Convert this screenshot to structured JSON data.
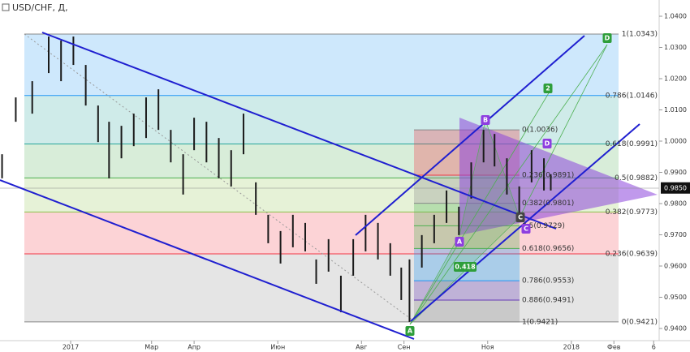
{
  "header": {
    "title": "USD/CHF, Д,"
  },
  "chart_data": {
    "type": "hilo",
    "color": "#1a1a1a",
    "x": [
      -50,
      -40,
      -28,
      -16,
      -7,
      2,
      11,
      20,
      28,
      37,
      46,
      55,
      64,
      73,
      82,
      90,
      99,
      108,
      117,
      126,
      135,
      144,
      153,
      162,
      171,
      179,
      188,
      197,
      206,
      215,
      224,
      233,
      241,
      247,
      256,
      265,
      274,
      283,
      292,
      301,
      309,
      318,
      327,
      336,
      345,
      350
    ],
    "high": [
      0.9958,
      1.014,
      1.0192,
      1.0335,
      1.0322,
      1.0335,
      1.0244,
      1.0114,
      1.0062,
      1.0049,
      1.0088,
      1.014,
      1.0166,
      1.0036,
      0.9958,
      1.0075,
      1.0062,
      1.001,
      0.9971,
      1.0088,
      0.9868,
      0.9764,
      0.9712,
      0.9764,
      0.9738,
      0.9621,
      0.9686,
      0.9569,
      0.9686,
      0.9764,
      0.9738,
      0.9673,
      0.9595,
      0.9621,
      0.9699,
      0.9764,
      0.9842,
      0.979,
      0.9932,
      1.0036,
      1.0023,
      0.9945,
      0.9855,
      0.9971,
      0.9945,
      0.9894
    ],
    "low": [
      0.9881,
      1.0062,
      1.0088,
      1.0218,
      1.0192,
      1.0244,
      1.0114,
      0.9997,
      0.9881,
      0.9945,
      0.9984,
      1.001,
      1.0036,
      0.9932,
      0.9829,
      0.9971,
      0.9932,
      0.9881,
      0.9855,
      0.9958,
      0.9764,
      0.9673,
      0.9608,
      0.966,
      0.9647,
      0.9543,
      0.9582,
      0.9452,
      0.9569,
      0.9647,
      0.9621,
      0.9569,
      0.9491,
      0.9421,
      0.9595,
      0.9673,
      0.9738,
      0.9699,
      0.9816,
      0.9932,
      0.9919,
      0.9829,
      0.9751,
      0.9868,
      0.9842,
      0.9842
    ],
    "xlim": [
      -51.5,
      429
    ],
    "ylim": [
      0.9361,
      1.0452
    ],
    "xticks": [
      {
        "value": 0,
        "label": "2017"
      },
      {
        "value": 59,
        "label": "Мар"
      },
      {
        "value": 90,
        "label": "Апр"
      },
      {
        "value": 151,
        "label": "Июн"
      },
      {
        "value": 212,
        "label": "Авг"
      },
      {
        "value": 243,
        "label": "Сен"
      },
      {
        "value": 304,
        "label": "Ноя"
      },
      {
        "value": 365,
        "label": "2018"
      },
      {
        "value": 396,
        "label": "Фев"
      },
      {
        "value": 425,
        "label": "6"
      }
    ],
    "yticks": [
      {
        "value": 1.04,
        "label": "1.0400"
      },
      {
        "value": 1.03,
        "label": "1.0300"
      },
      {
        "value": 1.02,
        "label": "1.0200"
      },
      {
        "value": 1.01,
        "label": "1.0100"
      },
      {
        "value": 1.0,
        "label": "1.0000"
      },
      {
        "value": 0.99,
        "label": "0.9900"
      },
      {
        "value": 0.98,
        "label": "0.9800"
      },
      {
        "value": 0.97,
        "label": "0.9700"
      },
      {
        "value": 0.96,
        "label": "0.9600"
      },
      {
        "value": 0.95,
        "label": "0.9500"
      },
      {
        "value": 0.94,
        "label": "0.9400"
      }
    ],
    "last_price": {
      "value": 0.985,
      "label": "0.9850"
    },
    "fib_main": [
      {
        "value": 1.0343,
        "label": "1(1.0343)",
        "color": "#888888"
      },
      {
        "value": 1.0146,
        "label": "0.786(1.0146)",
        "color": "#2196f3"
      },
      {
        "value": 0.9991,
        "label": "0.618(0.9991)",
        "color": "#26a69a"
      },
      {
        "value": 0.9882,
        "label": "0.5(0.9882)",
        "color": "#4caf50"
      },
      {
        "value": 0.9773,
        "label": "0.382(0.9773)",
        "color": "#8bc34a"
      },
      {
        "value": 0.9639,
        "label": "0.236(0.9639)",
        "color": "#f23645"
      },
      {
        "value": 0.9421,
        "label": "0(0.9421)",
        "color": "#888888"
      }
    ],
    "fib_small": [
      {
        "value": 1.0036,
        "label": "0(1.0036)",
        "color": "#888888"
      },
      {
        "value": 0.9891,
        "label": "0.236(0.9891)",
        "color": "#f23645"
      },
      {
        "value": 0.9801,
        "label": "0.382(0.9801)",
        "color": "#888888"
      },
      {
        "value": 0.9729,
        "label": "0.5(0.9729)",
        "color": "#4caf50"
      },
      {
        "value": 0.9656,
        "label": "0.618(0.9656)",
        "color": "#4caf50"
      },
      {
        "value": 0.9553,
        "label": "0.786(0.9553)",
        "color": "#2196f3"
      },
      {
        "value": 0.9491,
        "label": "0.886(0.9491)",
        "color": "#673ab7"
      },
      {
        "value": 0.9421,
        "label": "1(0.9421)",
        "color": "#888888"
      }
    ],
    "pattern_labels": [
      "A",
      "B",
      "C",
      "D",
      "A",
      "C",
      "D",
      "2",
      "0.418"
    ]
  }
}
